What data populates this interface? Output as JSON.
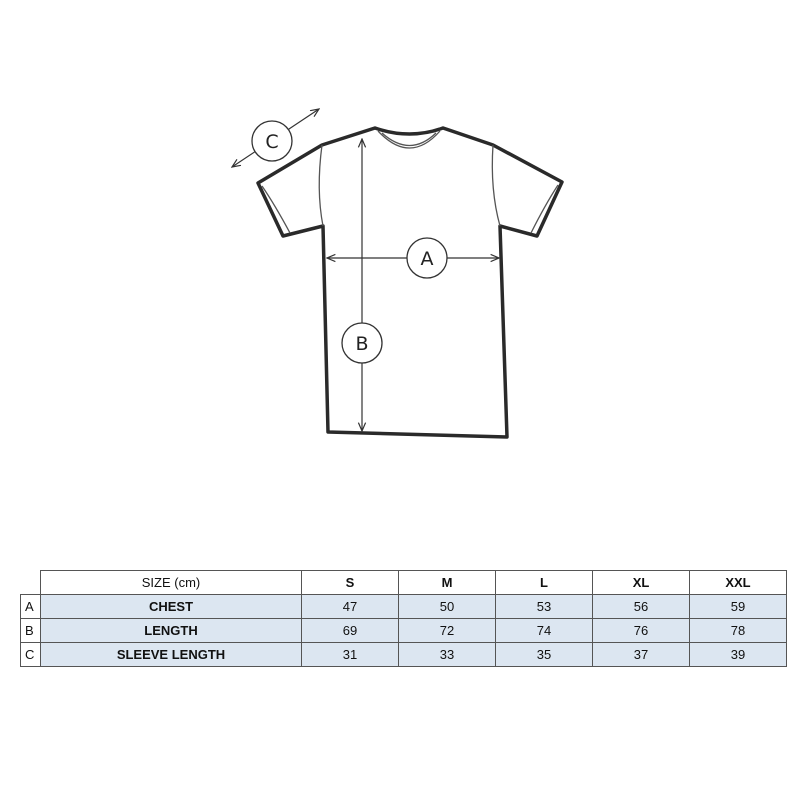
{
  "diagram": {
    "labels": {
      "chest": "A",
      "length": "B",
      "sleeve": "C"
    }
  },
  "table": {
    "header": {
      "label": "SIZE (cm)",
      "sizes": [
        "S",
        "M",
        "L",
        "XL",
        "XXL"
      ]
    },
    "rows": [
      {
        "key": "A",
        "name": "CHEST",
        "values": [
          "47",
          "50",
          "53",
          "56",
          "59"
        ]
      },
      {
        "key": "B",
        "name": "LENGTH",
        "values": [
          "69",
          "72",
          "74",
          "76",
          "78"
        ]
      },
      {
        "key": "C",
        "name": "SLEEVE LENGTH",
        "values": [
          "31",
          "33",
          "35",
          "37",
          "39"
        ]
      }
    ],
    "fill_color": "#dce6f1"
  }
}
